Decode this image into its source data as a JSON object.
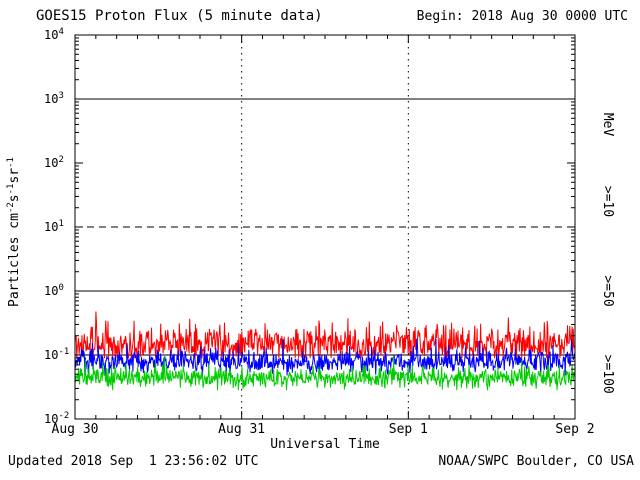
{
  "header": {
    "title": "GOES15 Proton Flux (5 minute data)",
    "begin": "Begin: 2018 Aug 30 0000 UTC"
  },
  "footer": {
    "updated": "Updated 2018 Sep  1 23:56:02 UTC",
    "source": "NOAA/SWPC Boulder, CO USA"
  },
  "chart_data": {
    "type": "line",
    "title": "GOES15 Proton Flux (5 minute data)",
    "xlabel": "Universal Time",
    "ylabel_segments": [
      {
        "t": "Particles  cm"
      },
      {
        "t": "-2",
        "sup": true
      },
      {
        "t": "s"
      },
      {
        "t": "-1",
        "sup": true
      },
      {
        "t": "sr"
      },
      {
        "t": "-1",
        "sup": true
      }
    ],
    "x_ticks": [
      "Aug 30",
      "Aug 31",
      "Sep 1",
      "Sep 2"
    ],
    "x_days": 3,
    "points_per_day": 288,
    "y_exponents": [
      4,
      3,
      2,
      1,
      0,
      -1,
      -2
    ],
    "ylim_exponents": [
      -2,
      4
    ],
    "hlines": [
      {
        "exp": 3,
        "style": "solid"
      },
      {
        "exp": 1,
        "style": "dashed"
      },
      {
        "exp": 0,
        "style": "solid"
      },
      {
        "exp": -1,
        "style": "solid"
      }
    ],
    "vlines_days": [
      1,
      2
    ],
    "series": [
      {
        "name": ">=10 MeV",
        "color": "#ff0000",
        "log10_mean": -0.82,
        "log10_std": 0.18,
        "log10_min": -1.05,
        "log10_max": -0.32,
        "seed": 101
      },
      {
        "name": ">=50 MeV",
        "color": "#0000ff",
        "log10_mean": -1.1,
        "log10_std": 0.12,
        "log10_min": -1.32,
        "log10_max": -0.75,
        "seed": 202
      },
      {
        "name": ">=100 MeV",
        "color": "#00cc00",
        "log10_mean": -1.36,
        "log10_std": 0.1,
        "log10_min": -1.55,
        "log10_max": -1.02,
        "seed": 303
      }
    ],
    "right_labels": [
      {
        "text": "MeV",
        "color": "#000000",
        "center_exp": 2.6
      },
      {
        "text": ">=10",
        "color": "#ff0000",
        "center_exp": 1.4
      },
      {
        "text": ">=50",
        "color": "#0000ff",
        "center_exp": 0.0
      },
      {
        "text": ">=100",
        "color": "#00cc00",
        "center_exp": -1.3
      }
    ]
  }
}
